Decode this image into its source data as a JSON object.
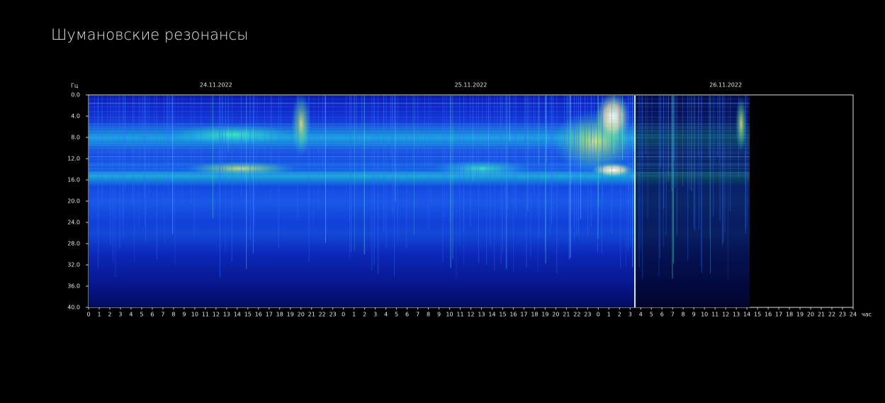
{
  "header": {
    "title": "Шумановские резонансы"
  },
  "spectrogram": {
    "y_unit": "Гц",
    "y_labels": [
      "0.0",
      "4.0",
      "8.0",
      "12.0",
      "16.0",
      "20.0",
      "24.0",
      "28.0",
      "32.0",
      "36.0",
      "40.0"
    ],
    "dates": [
      "24.11.2022",
      "25.11.2022",
      "26.11.2022"
    ],
    "x_labels": [
      "0",
      "1",
      "2",
      "3",
      "4",
      "5",
      "6",
      "7",
      "8",
      "9",
      "10",
      "11",
      "12",
      "13",
      "14",
      "15",
      "16",
      "17",
      "18",
      "19",
      "20",
      "21",
      "22",
      "23",
      "0",
      "1",
      "2",
      "3",
      "4",
      "5",
      "6",
      "7",
      "8",
      "9",
      "10",
      "11",
      "12",
      "13",
      "14",
      "15",
      "16",
      "17",
      "18",
      "19",
      "20",
      "21",
      "22",
      "23",
      "0",
      "1",
      "2",
      "3",
      "4",
      "5",
      "6",
      "7",
      "8",
      "9",
      "10",
      "11",
      "12",
      "13",
      "14",
      "15",
      "16",
      "17",
      "18",
      "19",
      "20",
      "21",
      "22",
      "23",
      "24"
    ],
    "x_unit": "час"
  }
}
